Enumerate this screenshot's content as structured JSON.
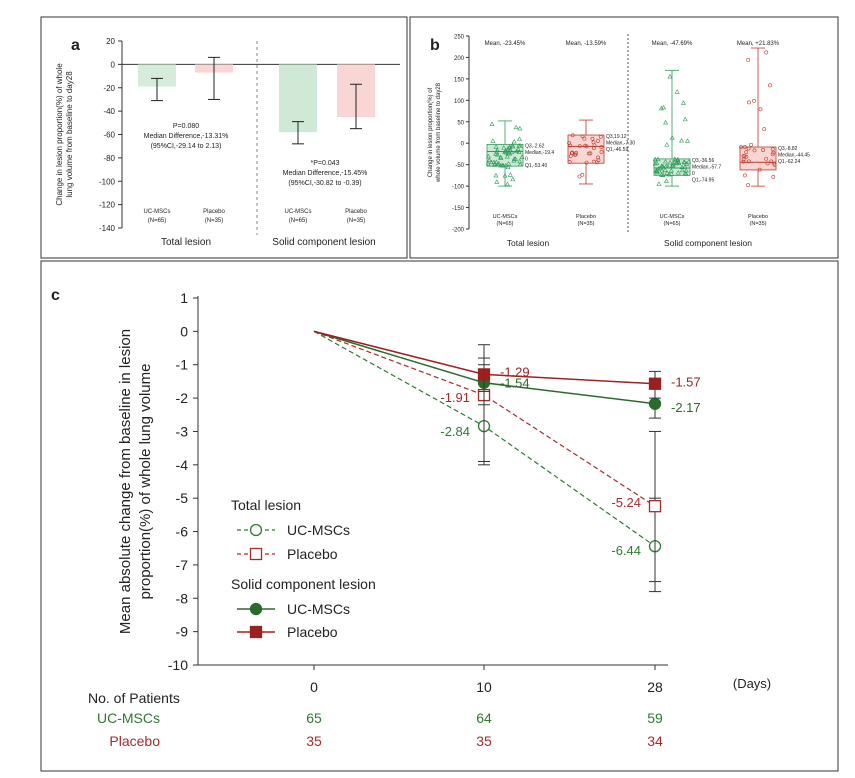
{
  "chart_data": [
    {
      "panel": "a",
      "type": "bar",
      "ylabel": "Change in lesion proportion(%) of whole lung volume from baseline to day28",
      "ylim": [
        -140,
        20
      ],
      "yticks": [
        20,
        0,
        -20,
        -40,
        -60,
        -80,
        -100,
        -120,
        -140
      ],
      "groups": [
        {
          "name": "Total lesion",
          "bars": [
            {
              "label": "UC-MSCs",
              "n": "(N=65)",
              "value": -19,
              "err_low": -31,
              "err_high": -12,
              "color": "#d4ecd9"
            },
            {
              "label": "Placebo",
              "n": "(N=35)",
              "value": -7,
              "err_low": -30,
              "err_high": 6,
              "color": "#f7d6d4"
            }
          ],
          "annotation": [
            "P=0.080",
            "Median Difference,-13.31%",
            "(95%CI,-29.14 to 2.13)"
          ]
        },
        {
          "name": "Solid component lesion",
          "bars": [
            {
              "label": "UC-MSCs",
              "n": "(N=65)",
              "value": -58,
              "err_low": -68,
              "err_high": -49,
              "color": "#cfe9d6"
            },
            {
              "label": "Placebo",
              "n": "(N=35)",
              "value": -45,
              "err_low": -55,
              "err_high": -17,
              "color": "#f7d6d4"
            }
          ],
          "annotation": [
            "*P=0.043",
            "Median Difference,-15.45%",
            "(95%CI,-30.82 to -0.39)"
          ]
        }
      ]
    },
    {
      "panel": "b",
      "type": "box",
      "ylabel": "Change in lesion proportion(%) of whole volume from baseline to day28",
      "ylim": [
        -200,
        250
      ],
      "yticks": [
        250,
        200,
        150,
        100,
        50,
        0,
        -50,
        -100,
        -150,
        -200
      ],
      "groups": [
        {
          "name": "Total lesion",
          "boxes": [
            {
              "label": "UC-MSCs",
              "n": "(N=65)",
              "mean": "Mean, -23.45%",
              "q1": -53.4,
              "median": -19.4,
              "q3": -2.62,
              "min": -100,
              "max": 52,
              "color": "#2e9b5a",
              "fill": "#cfe9d6",
              "stats": [
                "Q3,-2.62",
                "Median,-19.4",
                "0",
                "Q1,-53.40"
              ]
            },
            {
              "label": "Placebo",
              "n": "(N=35)",
              "mean": "Mean, -13.59%",
              "q1": -46.59,
              "median": -7.3,
              "q3": 19.12,
              "min": -95,
              "max": 54,
              "color": "#c0392b",
              "fill": "#f7d6d4",
              "stats": [
                "Q3,19.12",
                "Median,-7.30",
                "Q1,-46.59"
              ]
            }
          ]
        },
        {
          "name": "Solid component lesion",
          "boxes": [
            {
              "label": "UC-MSCs",
              "n": "(N=65)",
              "mean": "Mean, -47.69%",
              "q1": -74.95,
              "median": -57.7,
              "q3": -36.56,
              "min": -100,
              "max": 170,
              "color": "#2e9b5a",
              "fill": "#cfe9d6",
              "stats": [
                "Q3,-36.56",
                "Median,-57.7",
                "0",
                "Q1,-74.95"
              ]
            },
            {
              "label": "Placebo",
              "n": "(N=35)",
              "mean": "Mean, +21.83%",
              "q1": -62.24,
              "median": -44.45,
              "q3": -8.82,
              "min": -100,
              "max": 222,
              "color": "#c0392b",
              "fill": "#f7d6d4",
              "stats": [
                "Q3,-8.82",
                "Median,-44.45",
                "Q1,-62.24"
              ]
            }
          ]
        }
      ]
    },
    {
      "panel": "c",
      "type": "line",
      "ylabel": "Mean absolute change from baseline in lesion proportion(%) of whole lung volume",
      "xlabel": "(Days)",
      "x": [
        0,
        10,
        28
      ],
      "xticks": [
        "0",
        "10",
        "28"
      ],
      "ylim": [
        -10,
        1
      ],
      "yticks": [
        "1",
        "0",
        "-1",
        "-2",
        "-3",
        "-4",
        "-5",
        "-6",
        "-7",
        "-8",
        "-9",
        "-10"
      ],
      "series": [
        {
          "name": "UC-MSCs",
          "group": "Total lesion",
          "style": "dashed-open-circle",
          "color": "#2f7a2f",
          "values": [
            0,
            -2.84,
            -6.44
          ],
          "labels": [
            "",
            "-2.84",
            "-6.44"
          ],
          "err": [
            null,
            [
              -4.0,
              -1.5
            ],
            [
              -7.8,
              -5.0
            ]
          ]
        },
        {
          "name": "Placebo",
          "group": "Total lesion",
          "style": "dashed-open-square",
          "color": "#a52a2a",
          "values": [
            0,
            -1.91,
            -5.24
          ],
          "labels": [
            "",
            "-1.91",
            "-5.24"
          ],
          "err": [
            null,
            [
              -3.9,
              -0.4
            ],
            [
              -7.5,
              -3.0
            ]
          ]
        },
        {
          "name": "UC-MSCs",
          "group": "Solid component lesion",
          "style": "solid-filled-circle",
          "color": "#2a6a2a",
          "values": [
            0,
            -1.54,
            -2.17
          ],
          "labels": [
            "",
            "-1.54",
            "-2.17"
          ],
          "err": [
            null,
            [
              -2.2,
              -1.0
            ],
            [
              -2.6,
              -1.7
            ]
          ]
        },
        {
          "name": "Placebo",
          "group": "Solid component lesion",
          "style": "solid-filled-square",
          "color": "#9b2121",
          "values": [
            0,
            -1.29,
            -1.57
          ],
          "labels": [
            "",
            "-1.29",
            "-1.57"
          ],
          "err": [
            null,
            [
              -1.8,
              -0.8
            ],
            [
              -2.0,
              -1.2
            ]
          ]
        }
      ],
      "legend": {
        "title1": "Total lesion",
        "title2": "Solid component lesion",
        "items": [
          "UC-MSCs",
          "Placebo",
          "UC-MSCs",
          "Placebo"
        ]
      },
      "patients": {
        "header": "No. of Patients",
        "rows": [
          {
            "name": "UC-MSCs",
            "color": "#2f7a2f",
            "values": [
              "65",
              "64",
              "59"
            ]
          },
          {
            "name": "Placebo",
            "color": "#a52a2a",
            "values": [
              "35",
              "35",
              "34"
            ]
          }
        ]
      }
    }
  ],
  "panel_labels": {
    "a": "a",
    "b": "b",
    "c": "c"
  }
}
